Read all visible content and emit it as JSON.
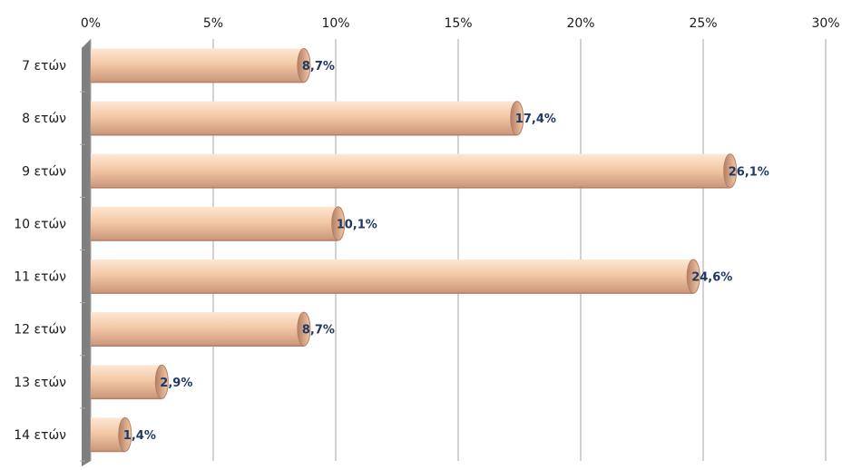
{
  "chart_data": {
    "type": "bar",
    "orientation": "horizontal",
    "categories": [
      "7 ετών",
      "8 ετών",
      "9 ετών",
      "10 ετών",
      "11 ετών",
      "12 ετών",
      "13 ετών",
      "14 ετών"
    ],
    "values": [
      8.7,
      17.4,
      26.1,
      10.1,
      24.6,
      8.7,
      2.9,
      1.4
    ],
    "value_labels": [
      "8,7%",
      "17,4%",
      "26,1%",
      "10,1%",
      "24,6%",
      "8,7%",
      "2,9%",
      "1,4%"
    ],
    "xlim": [
      0,
      30
    ],
    "ticks": [
      0,
      5,
      10,
      15,
      20,
      25,
      30
    ],
    "tick_labels": [
      "0%",
      "5%",
      "10%",
      "15%",
      "20%",
      "25%",
      "30%"
    ],
    "axis_position": "top",
    "grid": true,
    "bar_style": "cylinder",
    "colors": {
      "bar_light": "#fde7d4",
      "bar_mid": "#f4c9a6",
      "bar_dark": "#c9957a",
      "bar_cap": "#b37f66",
      "grid": "#a6a6a6",
      "label": "#1f3864",
      "wall": "#7f7f7f"
    }
  }
}
